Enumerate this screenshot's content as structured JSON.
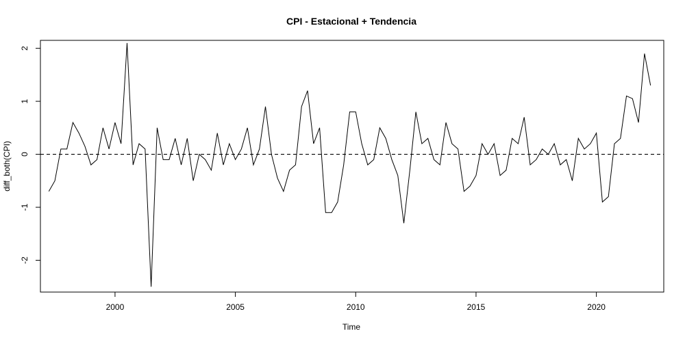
{
  "chart_data": {
    "type": "line",
    "title": "CPI - Estacional + Tendencia",
    "xlabel": "Time",
    "ylabel": "diff_both(CPI)",
    "xlim": [
      1996.9,
      2022.8
    ],
    "ylim": [
      -2.6,
      2.15
    ],
    "x_ticks": [
      2000,
      2005,
      2010,
      2015,
      2020
    ],
    "y_ticks": [
      -2,
      -1,
      0,
      1,
      2
    ],
    "grid": false,
    "reference_line": {
      "y": 0,
      "style": "dashed"
    },
    "series": [
      {
        "start": 1997.25,
        "frequency": 4,
        "values": [
          -0.7,
          -0.5,
          0.1,
          0.1,
          0.6,
          0.4,
          0.15,
          -0.2,
          -0.1,
          0.5,
          0.1,
          0.6,
          0.2,
          2.1,
          -0.2,
          0.2,
          0.1,
          -2.5,
          0.5,
          -0.1,
          -0.1,
          0.3,
          -0.2,
          0.3,
          -0.5,
          0.0,
          -0.1,
          -0.3,
          0.4,
          -0.2,
          0.2,
          -0.1,
          0.1,
          0.5,
          -0.2,
          0.1,
          0.9,
          0.0,
          -0.45,
          -0.7,
          -0.3,
          -0.2,
          0.9,
          1.2,
          0.2,
          0.5,
          -1.1,
          -1.1,
          -0.9,
          -0.2,
          0.8,
          0.8,
          0.2,
          -0.2,
          -0.1,
          0.5,
          0.3,
          -0.1,
          -0.4,
          -1.3,
          -0.3,
          0.8,
          0.2,
          0.3,
          -0.1,
          -0.2,
          0.6,
          0.2,
          0.1,
          -0.7,
          -0.6,
          -0.4,
          0.2,
          0.0,
          0.2,
          -0.4,
          -0.3,
          0.3,
          0.2,
          0.7,
          -0.2,
          -0.1,
          0.1,
          0.0,
          0.2,
          -0.2,
          -0.1,
          -0.5,
          0.3,
          0.1,
          0.2,
          0.4,
          -0.9,
          -0.8,
          0.2,
          0.3,
          1.1,
          1.05,
          0.6,
          1.9,
          1.3
        ]
      }
    ]
  }
}
